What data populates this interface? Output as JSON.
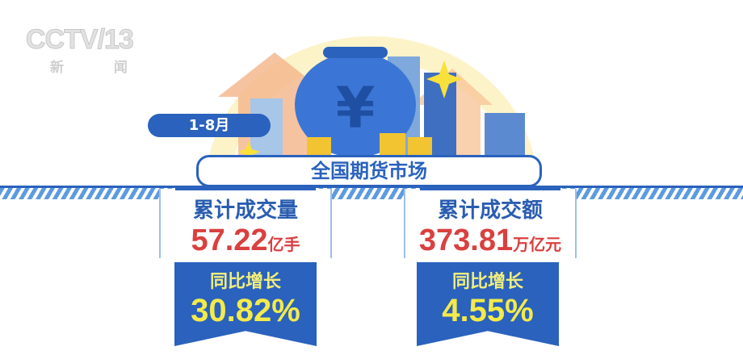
{
  "logo": {
    "brand": "CCTV",
    "channel": "13",
    "name": "新 闻"
  },
  "date_label": "1-8月",
  "title": "全国期货市场",
  "colors": {
    "primary": "#2a62bd",
    "value_red": "#d9403f",
    "highlight_yellow": "#f4ea4a"
  },
  "stats": [
    {
      "label": "累计成交量",
      "value": "57.22",
      "unit": "亿手",
      "growth_label": "同比增长",
      "growth": "30.82%"
    },
    {
      "label": "累计成交额",
      "value": "373.81",
      "unit": "万亿元",
      "growth_label": "同比增长",
      "growth": "4.55%"
    }
  ]
}
